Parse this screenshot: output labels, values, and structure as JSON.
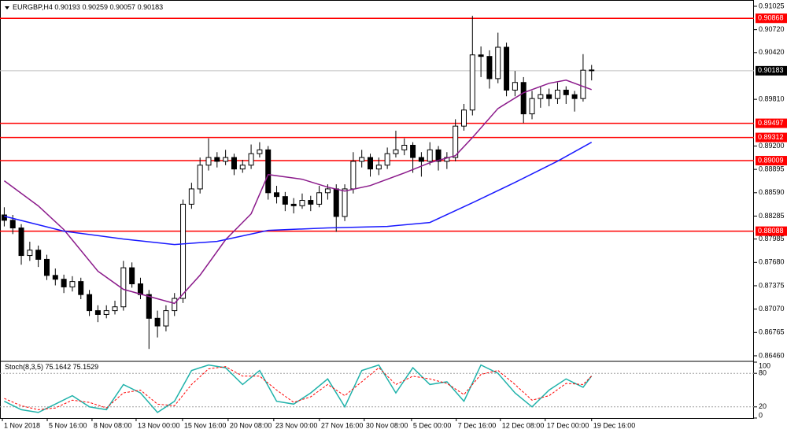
{
  "chart_data": [
    {
      "type": "candlestick",
      "symbol": "EURGBP,H4",
      "candles": [
        [
          0.883,
          0.884,
          0.8815,
          0.8823
        ],
        [
          0.8823,
          0.883,
          0.8805,
          0.8813
        ],
        [
          0.8813,
          0.8818,
          0.8765,
          0.8777
        ],
        [
          0.8777,
          0.8795,
          0.877,
          0.8784
        ],
        [
          0.8784,
          0.879,
          0.8762,
          0.8772
        ],
        [
          0.8772,
          0.8778,
          0.8745,
          0.8751
        ],
        [
          0.8751,
          0.876,
          0.8738,
          0.8746
        ],
        [
          0.8746,
          0.8752,
          0.8728,
          0.8736
        ],
        [
          0.8736,
          0.875,
          0.873,
          0.8743
        ],
        [
          0.8743,
          0.8748,
          0.872,
          0.8726
        ],
        [
          0.8726,
          0.8732,
          0.8698,
          0.8705
        ],
        [
          0.8705,
          0.8712,
          0.869,
          0.87
        ],
        [
          0.87,
          0.8712,
          0.8695,
          0.8705
        ],
        [
          0.8705,
          0.8718,
          0.87,
          0.871
        ],
        [
          0.871,
          0.877,
          0.8705,
          0.8761
        ],
        [
          0.8761,
          0.8768,
          0.8735,
          0.874
        ],
        [
          0.874,
          0.8748,
          0.872,
          0.8726
        ],
        [
          0.8726,
          0.8732,
          0.8655,
          0.8695
        ],
        [
          0.8695,
          0.8705,
          0.867,
          0.8685
        ],
        [
          0.8685,
          0.8712,
          0.8678,
          0.8705
        ],
        [
          0.8705,
          0.8728,
          0.8698,
          0.8721
        ],
        [
          0.8721,
          0.885,
          0.8715,
          0.8844
        ],
        [
          0.8844,
          0.8872,
          0.8838,
          0.8864
        ],
        [
          0.8864,
          0.8905,
          0.8858,
          0.8895
        ],
        [
          0.8895,
          0.893,
          0.8888,
          0.8905
        ],
        [
          0.8905,
          0.8912,
          0.8892,
          0.89
        ],
        [
          0.89,
          0.8915,
          0.8895,
          0.8905
        ],
        [
          0.8905,
          0.891,
          0.8882,
          0.889
        ],
        [
          0.889,
          0.8902,
          0.8885,
          0.8895
        ],
        [
          0.8895,
          0.8922,
          0.889,
          0.891
        ],
        [
          0.891,
          0.8925,
          0.8905,
          0.8915
        ],
        [
          0.8915,
          0.892,
          0.885,
          0.8859
        ],
        [
          0.8859,
          0.8868,
          0.8845,
          0.8854
        ],
        [
          0.8854,
          0.886,
          0.8835,
          0.8844
        ],
        [
          0.8844,
          0.8852,
          0.8832,
          0.8842
        ],
        [
          0.8842,
          0.8858,
          0.8838,
          0.8849
        ],
        [
          0.8849,
          0.8855,
          0.8835,
          0.8844
        ],
        [
          0.8844,
          0.8868,
          0.884,
          0.8859
        ],
        [
          0.8859,
          0.887,
          0.885,
          0.8864
        ],
        [
          0.8864,
          0.887,
          0.8808,
          0.8828
        ],
        [
          0.8828,
          0.887,
          0.8822,
          0.8864
        ],
        [
          0.8864,
          0.8912,
          0.8858,
          0.89
        ],
        [
          0.89,
          0.8915,
          0.8892,
          0.8905
        ],
        [
          0.8905,
          0.891,
          0.888,
          0.889
        ],
        [
          0.889,
          0.8905,
          0.8882,
          0.8895
        ],
        [
          0.8895,
          0.8918,
          0.889,
          0.891
        ],
        [
          0.891,
          0.894,
          0.8905,
          0.8915
        ],
        [
          0.8915,
          0.893,
          0.8908,
          0.8921
        ],
        [
          0.8921,
          0.8925,
          0.8885,
          0.8905
        ],
        [
          0.8905,
          0.8912,
          0.888,
          0.89
        ],
        [
          0.89,
          0.8925,
          0.8895,
          0.8915
        ],
        [
          0.8915,
          0.892,
          0.8888,
          0.89
        ],
        [
          0.89,
          0.8912,
          0.889,
          0.8905
        ],
        [
          0.8905,
          0.8955,
          0.89,
          0.8946
        ],
        [
          0.8946,
          0.8975,
          0.894,
          0.8967
        ],
        [
          0.8967,
          0.909,
          0.896,
          0.9039
        ],
        [
          0.9039,
          0.905,
          0.901,
          0.9037
        ],
        [
          0.9037,
          0.9045,
          0.8995,
          0.9008
        ],
        [
          0.9008,
          0.9068,
          0.9002,
          0.9049
        ],
        [
          0.9049,
          0.9055,
          0.8985,
          0.8993
        ],
        [
          0.8993,
          0.9018,
          0.8985,
          0.9003
        ],
        [
          0.9003,
          0.901,
          0.895,
          0.8962
        ],
        [
          0.8962,
          0.8992,
          0.8955,
          0.8982
        ],
        [
          0.8982,
          0.8998,
          0.897,
          0.8987
        ],
        [
          0.8987,
          0.8995,
          0.8972,
          0.8982
        ],
        [
          0.8982,
          0.9003,
          0.8975,
          0.8993
        ],
        [
          0.8993,
          0.8998,
          0.8975,
          0.8987
        ],
        [
          0.8987,
          0.8992,
          0.8965,
          0.8982
        ],
        [
          0.8982,
          0.904,
          0.8978,
          0.9019
        ],
        [
          0.90193,
          0.90259,
          0.90057,
          0.90183
        ]
      ],
      "series": [
        {
          "color": "#8b1a8b",
          "x": [
            0,
            4,
            7,
            11,
            14,
            18,
            20,
            23,
            26,
            29,
            31,
            35,
            38,
            40,
            43,
            47,
            50,
            53,
            55,
            58,
            61,
            64,
            66,
            68,
            69
          ],
          "values": [
            0.88746,
            0.88417,
            0.88109,
            0.87565,
            0.87329,
            0.87205,
            0.87144,
            0.87514,
            0.87976,
            0.88314,
            0.88828,
            0.88766,
            0.88663,
            0.88612,
            0.88684,
            0.88848,
            0.88982,
            0.89074,
            0.8931,
            0.8969,
            0.89896,
            0.90019,
            0.9006,
            0.89978,
            0.89937
          ]
        },
        {
          "color": "#1a1aff",
          "x": [
            0,
            7,
            14,
            20,
            25,
            31,
            38,
            45,
            50,
            55,
            60,
            65,
            69
          ],
          "values": [
            0.88284,
            0.88088,
            0.87986,
            0.87914,
            0.87955,
            0.88099,
            0.8813,
            0.8815,
            0.88201,
            0.88458,
            0.88725,
            0.89002,
            0.89249
          ]
        }
      ],
      "levels": {
        "color": "#ff0000",
        "values": [
          0.90868,
          0.89497,
          0.89312,
          0.89009,
          0.88088
        ]
      },
      "xlim": [
        -0.5,
        88.07
      ],
      "xticks": [
        {
          "value": -0.22,
          "label": "1 Nov 2018"
        },
        {
          "value": 5.05,
          "label": "5 Nov 16:00"
        },
        {
          "value": 10.31,
          "label": "8 Nov 08:00"
        },
        {
          "value": 15.49,
          "label": "13 Nov 00:00"
        },
        {
          "value": 20.94,
          "label": "15 Nov 16:00"
        },
        {
          "value": 26.3,
          "label": "20 Nov 08:00"
        },
        {
          "value": 31.66,
          "label": "23 Nov 00:00"
        },
        {
          "value": 37.02,
          "label": "27 Nov 16:00"
        },
        {
          "value": 42.29,
          "label": "30 Nov 08:00"
        },
        {
          "value": 47.84,
          "label": "5 Dec 00:00"
        },
        {
          "value": 53.1,
          "label": "7 Dec 16:00"
        },
        {
          "value": 58.28,
          "label": "12 Dec 08:00"
        },
        {
          "value": 63.55,
          "label": "17 Dec 00:00"
        },
        {
          "value": 69.0,
          "label": "19 Dec 16:00"
        }
      ],
      "ylim": [
        0.86398,
        0.91107
      ],
      "yticks": [
        0.91025,
        {
          "value": 0.9072,
          "label": "0.90720"
        },
        {
          "value": 0.9042,
          "label": "0.90420"
        },
        {
          "value": 0.8981,
          "label": "0.89810"
        },
        {
          "value": 0.892,
          "label": "0.89200"
        },
        0.88895,
        {
          "value": 0.8859,
          "label": "0.88590"
        },
        0.88285,
        0.87985,
        {
          "value": 0.8768,
          "label": "0.87680"
        },
        0.87375,
        {
          "value": 0.8707,
          "label": "0.87070"
        },
        0.86765,
        {
          "value": 0.8646,
          "label": "0.86460"
        }
      ]
    },
    {
      "type": "line",
      "title": "Stoch(8,3,5)",
      "series": [
        {
          "color": "#20b2aa",
          "style": "solid",
          "x": [
            0,
            2,
            4,
            6,
            8,
            10,
            12,
            14,
            16,
            18,
            20,
            22,
            24,
            26,
            28,
            30,
            32,
            34,
            36,
            38,
            40,
            42,
            44,
            46,
            48,
            50,
            52,
            54,
            56,
            58,
            60,
            62,
            64,
            66,
            68,
            69
          ],
          "values": [
            30,
            15,
            10,
            25,
            40,
            20,
            15,
            60,
            45,
            10,
            30,
            85,
            95,
            90,
            60,
            85,
            30,
            25,
            45,
            70,
            20,
            85,
            95,
            45,
            90,
            60,
            65,
            30,
            95,
            80,
            45,
            20,
            50,
            70,
            55,
            75.1642
          ]
        },
        {
          "color": "#ff0000",
          "style": "dashed",
          "x": [
            0,
            2,
            4,
            6,
            8,
            10,
            12,
            14,
            16,
            18,
            20,
            22,
            24,
            26,
            28,
            30,
            32,
            34,
            36,
            38,
            40,
            42,
            44,
            46,
            48,
            50,
            52,
            54,
            56,
            58,
            60,
            62,
            64,
            66,
            68,
            69
          ],
          "values": [
            35,
            22,
            15,
            18,
            32,
            28,
            18,
            45,
            50,
            25,
            22,
            60,
            88,
            92,
            75,
            75,
            50,
            28,
            38,
            60,
            40,
            65,
            90,
            60,
            75,
            70,
            62,
            42,
            78,
            85,
            60,
            32,
            40,
            62,
            60,
            75.1529
          ]
        }
      ],
      "levels": [
        20,
        80
      ],
      "ylim": [
        0,
        100
      ],
      "yticks": [
        0,
        20,
        80,
        100
      ]
    }
  ]
}
